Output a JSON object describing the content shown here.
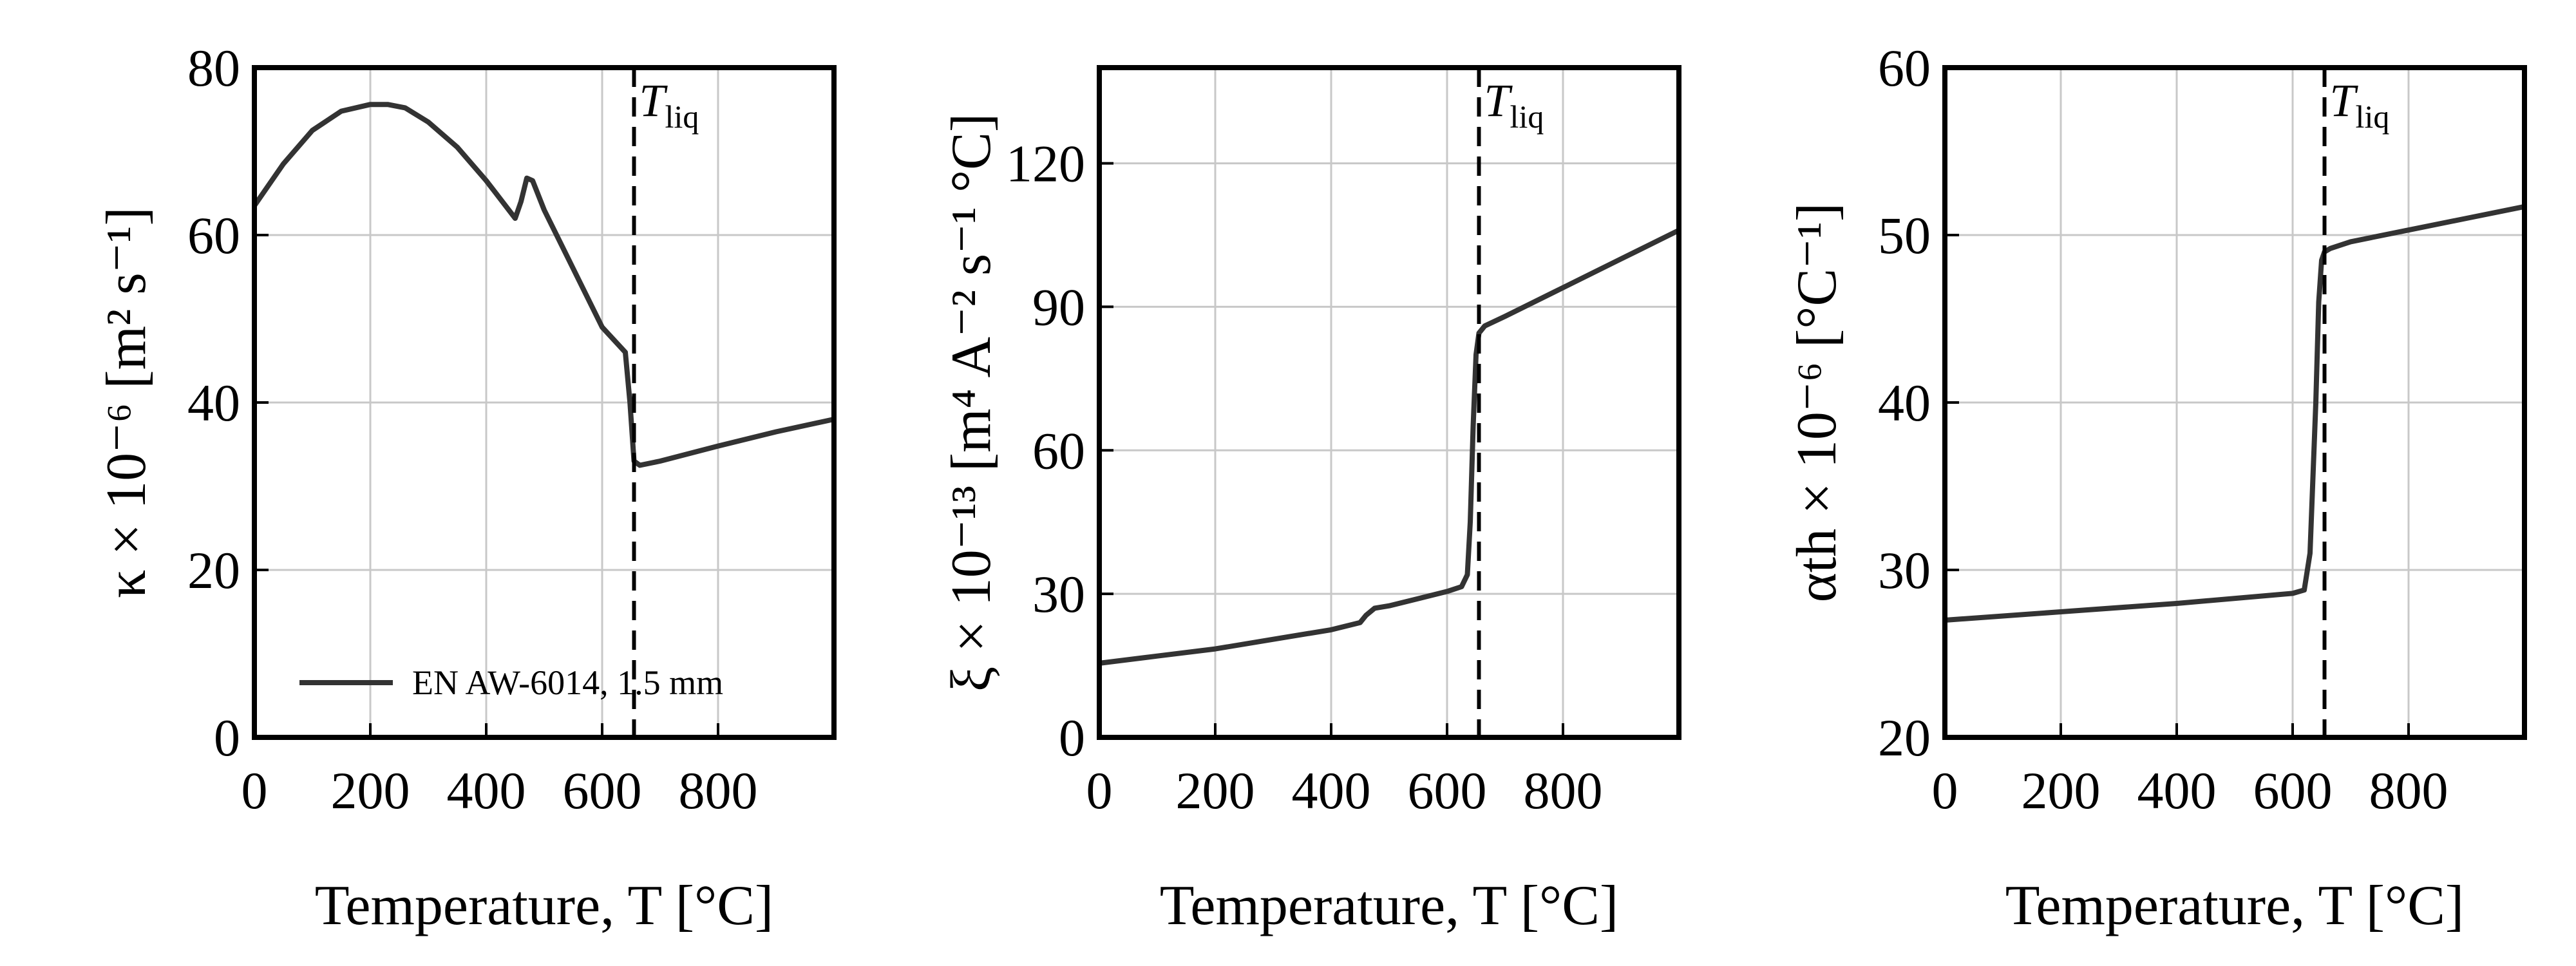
{
  "chart_data": [
    {
      "type": "line",
      "xlabel": "Temperature, T [°C]",
      "ylabel": "κ × 10⁻⁶ [m² s⁻¹]",
      "xlim": [
        0,
        1000
      ],
      "ylim": [
        0,
        80
      ],
      "xticks": [
        0,
        200,
        400,
        600,
        800
      ],
      "yticks": [
        0,
        20,
        40,
        60,
        80
      ],
      "grid": true,
      "legend": "lower-left",
      "vline": {
        "x": 655,
        "label": "T",
        "label_sub": "liq"
      },
      "series": [
        {
          "name": "EN AW-6014, 1.5 mm",
          "color": "#333333",
          "x": [
            0,
            50,
            100,
            150,
            200,
            230,
            260,
            300,
            350,
            400,
            450,
            460,
            470,
            480,
            500,
            550,
            600,
            640,
            648,
            655,
            665,
            700,
            800,
            900,
            1000
          ],
          "y": [
            63.5,
            68.5,
            72.5,
            74.8,
            75.6,
            75.6,
            75.2,
            73.5,
            70.5,
            66.5,
            62,
            64,
            66.8,
            66.5,
            63,
            56,
            49,
            46,
            40,
            33,
            32.5,
            33,
            34.8,
            36.5,
            38
          ]
        }
      ]
    },
    {
      "type": "line",
      "xlabel": "Temperature, T [°C]",
      "ylabel": "ξ × 10⁻¹³ [m⁴ A⁻² s⁻¹ °C]",
      "xlim": [
        0,
        1000
      ],
      "ylim": [
        0,
        140
      ],
      "xticks": [
        0,
        200,
        400,
        600,
        800
      ],
      "yticks": [
        0,
        30,
        60,
        90,
        120
      ],
      "grid": true,
      "vline": {
        "x": 655,
        "label": "T",
        "label_sub": "liq"
      },
      "series": [
        {
          "color": "#333333",
          "x": [
            0,
            100,
            200,
            300,
            400,
            450,
            460,
            475,
            500,
            550,
            600,
            625,
            635,
            640,
            645,
            650,
            655,
            665,
            700,
            800,
            900,
            1000
          ],
          "y": [
            15.5,
            17,
            18.5,
            20.5,
            22.5,
            24,
            25.5,
            27,
            27.5,
            29,
            30.5,
            31.5,
            34,
            45,
            65,
            80,
            84.5,
            86,
            88,
            94,
            100,
            106
          ]
        }
      ]
    },
    {
      "type": "line",
      "xlabel": "Temperature, T [°C]",
      "ylabel": "αth × 10⁻⁶ [°C⁻¹]",
      "xlim": [
        0,
        1000
      ],
      "ylim": [
        20,
        60
      ],
      "xticks": [
        0,
        200,
        400,
        600,
        800
      ],
      "yticks": [
        20,
        30,
        40,
        50,
        60
      ],
      "grid": true,
      "vline": {
        "x": 655,
        "label": "T",
        "label_sub": "liq"
      },
      "series": [
        {
          "color": "#333333",
          "x": [
            0,
            200,
            400,
            600,
            620,
            630,
            640,
            645,
            650,
            655,
            665,
            700,
            800,
            900,
            1000
          ],
          "y": [
            27,
            27.5,
            28,
            28.6,
            28.8,
            31,
            40,
            46,
            48.5,
            49,
            49.2,
            49.6,
            50.3,
            51,
            51.7
          ]
        }
      ]
    }
  ]
}
